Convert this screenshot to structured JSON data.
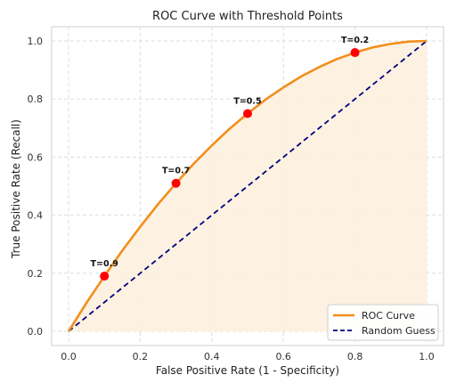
{
  "chart_data": {
    "type": "line",
    "title": "ROC Curve with Threshold Points",
    "xlabel": "False Positive Rate (1 - Specificity)",
    "ylabel": "True Positive Rate (Recall)",
    "xlim": [
      0.0,
      1.0
    ],
    "ylim": [
      0.0,
      1.0
    ],
    "x_ticks": [
      "0.0",
      "0.2",
      "0.4",
      "0.6",
      "0.8",
      "1.0"
    ],
    "y_ticks": [
      "0.0",
      "0.2",
      "0.4",
      "0.6",
      "0.8",
      "1.0"
    ],
    "grid": true,
    "legend_position": "lower-right",
    "series": [
      {
        "name": "ROC Curve",
        "style": "solid",
        "color": "#f28e1c",
        "fill": "#fdf1de",
        "x": [
          0.0,
          0.05,
          0.1,
          0.15,
          0.2,
          0.25,
          0.3,
          0.35,
          0.4,
          0.45,
          0.5,
          0.55,
          0.6,
          0.65,
          0.7,
          0.75,
          0.8,
          0.85,
          0.9,
          0.95,
          1.0
        ],
        "y": [
          0.0,
          0.098,
          0.19,
          0.278,
          0.36,
          0.438,
          0.51,
          0.578,
          0.64,
          0.698,
          0.75,
          0.798,
          0.84,
          0.878,
          0.91,
          0.938,
          0.96,
          0.978,
          0.99,
          0.998,
          1.0
        ]
      },
      {
        "name": "Random Guess",
        "style": "dashed",
        "color": "#000080",
        "x": [
          0.0,
          1.0
        ],
        "y": [
          0.0,
          1.0
        ]
      }
    ],
    "threshold_points": [
      {
        "label": "T=0.9",
        "x": 0.1,
        "y": 0.19
      },
      {
        "label": "T=0.7",
        "x": 0.3,
        "y": 0.51
      },
      {
        "label": "T=0.5",
        "x": 0.5,
        "y": 0.75
      },
      {
        "label": "T=0.2",
        "x": 0.8,
        "y": 0.96
      }
    ],
    "point_color": "#ff0000"
  }
}
